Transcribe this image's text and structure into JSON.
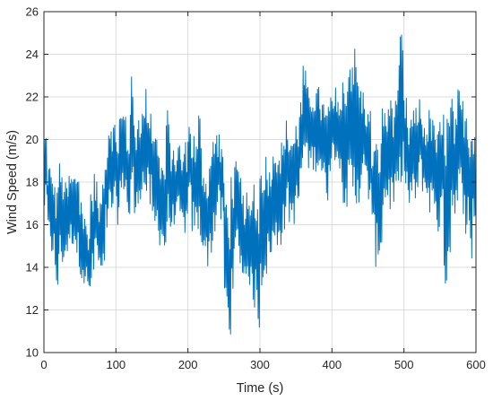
{
  "chart_data": {
    "type": "line",
    "title": "",
    "xlabel": "Time (s)",
    "ylabel": "Wind Speed (m/s)",
    "xlim": [
      0,
      600
    ],
    "ylim": [
      10,
      26
    ],
    "xticks": [
      0,
      100,
      200,
      300,
      400,
      500,
      600
    ],
    "yticks": [
      10,
      12,
      14,
      16,
      18,
      20,
      22,
      24,
      26
    ],
    "xtick_labels": [
      "0",
      "100",
      "200",
      "300",
      "400",
      "500",
      "600"
    ],
    "ytick_labels": [
      "10",
      "12",
      "14",
      "16",
      "18",
      "20",
      "22",
      "24",
      "26"
    ],
    "grid": true,
    "line_color": "#0072bd",
    "series": [
      {
        "name": "",
        "sampling_step": 5,
        "low": [
          16.5,
          15.0,
          14.5,
          12.5,
          14.0,
          14.0,
          14.5,
          15.0,
          15.0,
          14.0,
          13.5,
          13.0,
          12.5,
          13.0,
          14.5,
          13.5,
          13.0,
          15.5,
          16.0,
          16.5,
          16.0,
          17.0,
          17.5,
          16.0,
          17.0,
          16.0,
          17.0,
          17.5,
          17.0,
          16.5,
          15.0,
          15.5,
          15.0,
          14.5,
          15.5,
          15.5,
          16.0,
          16.0,
          15.5,
          15.5,
          16.5,
          15.5,
          15.5,
          15.0,
          14.5,
          14.0,
          14.5,
          15.5,
          16.5,
          16.0,
          11.5,
          10.5,
          13.0,
          14.5,
          14.0,
          13.0,
          13.5,
          12.5,
          12.0,
          11.0,
          13.0,
          13.5,
          14.0,
          14.5,
          14.5,
          15.0,
          15.5,
          16.5,
          16.0,
          16.0,
          16.5,
          18.0,
          19.0,
          18.5,
          18.5,
          18.5,
          18.5,
          18.0,
          17.0,
          18.5,
          19.0,
          19.0,
          18.0,
          17.0,
          16.5,
          16.5,
          16.5,
          17.0,
          18.0,
          17.5,
          17.0,
          15.0,
          14.0,
          14.5,
          16.5,
          17.0,
          16.5,
          16.5,
          17.0,
          18.0,
          17.5,
          16.5,
          17.0,
          17.0,
          18.0,
          17.5,
          17.0,
          16.5,
          16.5,
          15.5,
          16.0,
          13.0,
          14.0,
          16.5,
          16.5,
          17.0,
          16.5,
          15.5,
          14.0,
          16.0
        ],
        "high": [
          20.5,
          19.0,
          18.5,
          18.0,
          19.0,
          18.5,
          18.0,
          18.5,
          18.5,
          19.0,
          17.5,
          16.5,
          16.0,
          18.0,
          18.5,
          17.0,
          18.5,
          20.0,
          21.5,
          21.0,
          20.5,
          21.5,
          21.5,
          20.5,
          23.0,
          21.0,
          21.5,
          21.5,
          22.5,
          22.0,
          21.5,
          20.5,
          19.5,
          19.0,
          21.5,
          20.0,
          19.5,
          20.0,
          19.5,
          20.0,
          21.0,
          20.5,
          20.0,
          21.5,
          19.0,
          18.5,
          19.5,
          20.5,
          20.5,
          20.0,
          18.0,
          17.0,
          18.5,
          19.0,
          18.5,
          17.5,
          17.5,
          17.0,
          18.5,
          17.5,
          19.0,
          19.5,
          19.0,
          19.5,
          20.5,
          20.0,
          20.0,
          21.0,
          20.5,
          20.5,
          21.0,
          22.0,
          23.5,
          22.5,
          22.5,
          22.5,
          22.5,
          22.0,
          21.5,
          22.0,
          22.0,
          22.5,
          22.0,
          23.0,
          24.0,
          25.0,
          24.5,
          23.5,
          22.5,
          22.0,
          21.5,
          20.0,
          20.0,
          20.0,
          22.0,
          21.5,
          22.5,
          22.0,
          23.5,
          25.0,
          22.0,
          21.0,
          21.5,
          21.5,
          22.0,
          21.0,
          21.0,
          21.5,
          21.0,
          20.5,
          21.0,
          21.5,
          21.5,
          22.0,
          21.0,
          22.5,
          22.0,
          22.0,
          21.5,
          21.0
        ]
      }
    ]
  }
}
